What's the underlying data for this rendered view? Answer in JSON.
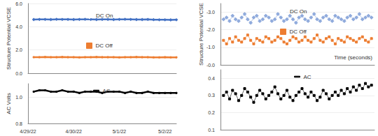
{
  "chart_data": [
    {
      "type": "line",
      "ylabel": "Structure Potential VCSE",
      "categories": [
        "4/29/22",
        null,
        null,
        null,
        null,
        null,
        null,
        null,
        "4/30/22",
        null,
        null,
        null,
        null,
        null,
        null,
        null,
        "5/1/22",
        null,
        null,
        null,
        null,
        null,
        null,
        null,
        "5/2/22",
        null,
        null
      ],
      "series": [
        {
          "name": "DC On",
          "color": "#4472c4",
          "marker": "diamond",
          "values": [
            null,
            4.62,
            4.63,
            4.63,
            4.62,
            4.64,
            4.63,
            4.63,
            4.62,
            4.63,
            4.64,
            4.63,
            4.62,
            4.63,
            4.63,
            4.62,
            4.63,
            4.64,
            4.63,
            4.62,
            4.62,
            4.63,
            4.61,
            4.6,
            4.6,
            4.59,
            4.6
          ]
        },
        {
          "name": "DC Off",
          "color": "#ed7d31",
          "marker": "square",
          "values": [
            null,
            1.38,
            1.38,
            1.39,
            1.38,
            1.38,
            1.39,
            1.38,
            1.38,
            1.37,
            1.38,
            1.38,
            1.39,
            1.38,
            1.38,
            1.38,
            1.37,
            1.38,
            1.38,
            1.39,
            1.38,
            1.38,
            1.37,
            1.37,
            1.38,
            1.37,
            1.37
          ]
        }
      ],
      "ylim": [
        0,
        6
      ],
      "yticks": [
        {
          "value": 0,
          "label": "0.0"
        },
        {
          "value": 2,
          "label": "2.0"
        },
        {
          "value": 4,
          "label": "4.0"
        },
        {
          "value": 6,
          "label": "6.0"
        }
      ],
      "grid": true,
      "legend": "center",
      "tick_labels": "y"
    },
    {
      "type": "line",
      "ylabel": "AC Volts",
      "categories": [
        "4/29/22",
        null,
        null,
        null,
        null,
        null,
        null,
        null,
        "4/30/22",
        null,
        null,
        null,
        null,
        null,
        null,
        null,
        "5/1/22",
        null,
        null,
        null,
        null,
        null,
        null,
        null,
        "5/2/22",
        null,
        null
      ],
      "series": [
        {
          "name": "AC",
          "color": "#000000",
          "marker": "dash",
          "values": [
            null,
            1.04,
            1.05,
            1.05,
            1.04,
            1.04,
            1.05,
            1.04,
            1.04,
            1.03,
            1.04,
            1.04,
            1.04,
            1.03,
            1.04,
            1.04,
            1.04,
            1.03,
            1.04,
            1.03,
            1.03,
            1.04,
            1.03,
            1.03,
            1.03,
            1.03,
            1.03
          ]
        }
      ],
      "ylim": [
        0.8,
        1.1
      ],
      "yticks": [
        0.8,
        {
          "value": 1,
          "label": "1.0"
        }
      ],
      "grid": true,
      "legend": "center"
    },
    {
      "type": "line",
      "ylabel": "Structure Potential VCSE",
      "x": [
        1,
        2,
        3,
        4,
        5,
        6,
        7,
        8,
        9,
        10,
        11,
        12,
        13,
        14,
        15,
        16,
        17,
        18,
        19,
        20,
        21,
        22,
        23,
        24,
        25,
        26,
        27,
        28,
        29,
        30,
        31,
        32,
        33,
        34,
        35,
        36,
        37,
        38,
        39,
        40,
        41,
        42,
        43,
        44,
        45,
        46,
        47,
        48,
        49,
        50
      ],
      "xlim": [
        0,
        51
      ],
      "series": [
        {
          "name": "DC On",
          "color": "#8faadc",
          "marker": "diamond",
          "values": [
            -2.6,
            -2.7,
            -2.5,
            -2.8,
            -2.6,
            -2.5,
            -2.7,
            -2.9,
            -2.6,
            -2.4,
            -2.7,
            -2.8,
            -2.5,
            -2.6,
            -2.8,
            -2.7,
            -2.5,
            -2.6,
            -2.9,
            -2.7,
            -2.5,
            -2.6,
            -2.8,
            -2.6,
            -2.4,
            -2.7,
            -2.8,
            -2.6,
            -2.5,
            -2.7,
            -2.9,
            -2.6,
            -2.5,
            -2.7,
            -2.8,
            -2.6,
            -2.5,
            -2.8,
            -2.7,
            -2.6,
            -2.5,
            -2.7,
            -2.8,
            -2.6,
            -2.7,
            -2.9,
            -2.6,
            -2.7,
            -2.8,
            -2.7
          ]
        },
        {
          "name": "DC Off",
          "color": "#ed7d31",
          "marker": "square",
          "values": [
            -1.4,
            -1.2,
            -1.5,
            -1.3,
            -1.6,
            -1.4,
            -1.3,
            -1.5,
            -1.7,
            -1.4,
            -1.2,
            -1.5,
            -1.4,
            -1.3,
            -1.6,
            -1.5,
            -1.3,
            -1.4,
            -1.6,
            -1.5,
            -1.3,
            -1.2,
            -1.4,
            -1.6,
            -1.5,
            -1.3,
            -1.4,
            -1.6,
            -1.4,
            -1.3,
            -1.5,
            -1.7,
            -1.4,
            -1.3,
            -1.5,
            -1.6,
            -1.4,
            -1.2,
            -1.5,
            -1.4,
            -1.3,
            -1.6,
            -1.5,
            -1.4,
            -1.3,
            -1.5,
            -1.6,
            -1.4,
            -1.3,
            -1.5
          ]
        }
      ],
      "ylim": [
        0,
        -3.5
      ],
      "yticks": [
        {
          "value": -3,
          "label": "-3.0"
        },
        {
          "value": -2,
          "label": "-2.0"
        },
        {
          "value": -1,
          "label": "-1.0"
        },
        {
          "value": 0,
          "label": "-0.0"
        }
      ],
      "grid": true,
      "legend": "center",
      "tick_labels": "y"
    },
    {
      "type": "line",
      "xlabel": "Time (seconds)",
      "x": [
        1,
        2,
        3,
        4,
        5,
        6,
        7,
        8,
        9,
        10,
        11,
        12,
        13,
        14,
        15,
        16,
        17,
        18,
        19,
        20,
        21,
        22,
        23,
        24,
        25,
        26,
        27,
        28,
        29,
        30,
        31,
        32,
        33,
        34,
        35,
        36,
        37,
        38,
        39,
        40,
        41,
        42,
        43,
        44,
        45,
        46,
        47,
        48,
        49,
        50
      ],
      "xlim": [
        0,
        51
      ],
      "series": [
        {
          "name": "AC",
          "color": "#000000",
          "marker": "dash",
          "values": [
            0.3,
            0.32,
            0.28,
            0.33,
            0.31,
            0.27,
            0.3,
            0.34,
            0.32,
            0.29,
            0.26,
            0.3,
            0.33,
            0.31,
            0.28,
            0.3,
            0.32,
            0.35,
            0.31,
            0.28,
            0.3,
            0.33,
            0.29,
            0.27,
            0.3,
            0.32,
            0.34,
            0.31,
            0.29,
            0.32,
            0.3,
            0.27,
            0.29,
            0.33,
            0.31,
            0.28,
            0.3,
            0.32,
            0.3,
            0.33,
            0.31,
            0.34,
            0.32,
            0.35,
            0.33,
            0.36,
            0.34,
            0.37,
            0.35,
            0.36
          ]
        }
      ],
      "ylim": [
        0.1,
        0.45
      ],
      "yticks": [
        0.1,
        0.2,
        0.3,
        0.4
      ],
      "grid": true,
      "legend": "center",
      "tick_labels": "y"
    }
  ]
}
